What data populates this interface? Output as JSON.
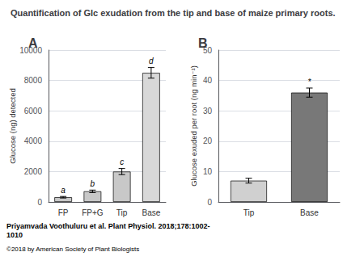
{
  "title": "Quantification of Glc exudation from the tip and base of maize primary roots.",
  "annotations": [
    "Priyamvada Voothuluru et al. Plant Physiol. 2018;178:1002-\n1010",
    "©2018 by American Society of Plant Biologists"
  ],
  "chart_data": [
    {
      "type": "bar",
      "title": "A",
      "categories": [
        "FP",
        "FP+G",
        "Tip",
        "Base"
      ],
      "values": [
        310,
        700,
        2000,
        8500
      ],
      "errors": [
        50,
        80,
        200,
        350
      ],
      "colors": [
        "#c8c8c8",
        "#c8c8c8",
        "#c8c8c8",
        "#d8d8d8"
      ],
      "annotations": [
        "a",
        "b",
        "c",
        "d"
      ],
      "ylabel": "Glucose (ng) detected",
      "ylim": [
        0,
        10000
      ],
      "yticks": [
        0,
        2000,
        4000,
        6000,
        8000,
        10000
      ],
      "grid": true
    },
    {
      "type": "bar",
      "title": "B",
      "categories": [
        "Tip",
        "Base"
      ],
      "values": [
        7.0,
        36.0
      ],
      "errors": [
        0.8,
        1.5
      ],
      "colors": [
        "#d0d0d0",
        "#787878"
      ],
      "annotations": [
        null,
        "*"
      ],
      "ylabel": "Glucose exuded per root (ng min⁻¹)",
      "ylim": [
        0,
        50
      ],
      "yticks": [
        0,
        10,
        20,
        30,
        40,
        50
      ],
      "grid": true
    }
  ]
}
